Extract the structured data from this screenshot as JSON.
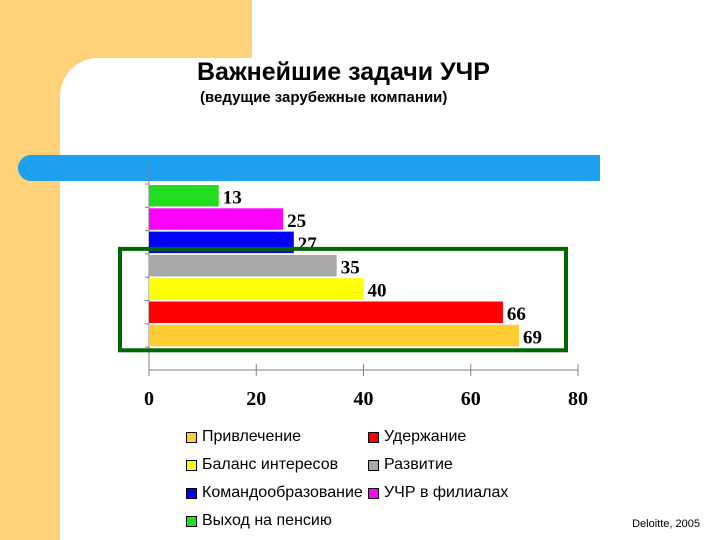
{
  "slide": {
    "title": "Важнейшие задачи УЧР",
    "subtitle": "(ведущие зарубежные компании)",
    "source": "Deloitte, 2005"
  },
  "colors": {
    "background_accent": "#FFD27A",
    "blue_band": "#1EA0F0",
    "highlight_box": "#006600"
  },
  "chart_data": {
    "type": "bar",
    "orientation": "horizontal",
    "title": "",
    "xlabel": "",
    "ylabel": "",
    "xlim": [
      0,
      80
    ],
    "x_ticks": [
      "0",
      "20",
      "40",
      "60",
      "80"
    ],
    "grid": false,
    "legend_placement": "bottom",
    "series": [
      {
        "name": "Выход на пенсию",
        "value": 13,
        "color": "#22DD22"
      },
      {
        "name": "УЧР в филиалах",
        "value": 25,
        "color": "#FF00FF"
      },
      {
        "name": "Командообразование",
        "value": 27,
        "color": "#0000FF"
      },
      {
        "name": "Развитие",
        "value": 35,
        "color": "#A8A8A8"
      },
      {
        "name": "Баланс интересов",
        "value": 40,
        "color": "#FFFF00"
      },
      {
        "name": "Удержание",
        "value": 66,
        "color": "#FF0000"
      },
      {
        "name": "Привлечение",
        "value": 69,
        "color": "#FFCC33"
      }
    ],
    "highlighted_series": [
      "Развитие",
      "Баланс интересов",
      "Удержание",
      "Привлечение"
    ]
  },
  "legend": [
    {
      "label": "Привлечение",
      "color": "#FFCC33"
    },
    {
      "label": "Удержание",
      "color": "#FF0000"
    },
    {
      "label": "Баланс интересов",
      "color": "#FFFF00"
    },
    {
      "label": "Развитие",
      "color": "#A8A8A8"
    },
    {
      "label": "Командообразование",
      "color": "#0000FF"
    },
    {
      "label": "УЧР в филиалах",
      "color": "#FF00FF"
    },
    {
      "label": "Выход на пенсию",
      "color": "#22DD22"
    }
  ]
}
